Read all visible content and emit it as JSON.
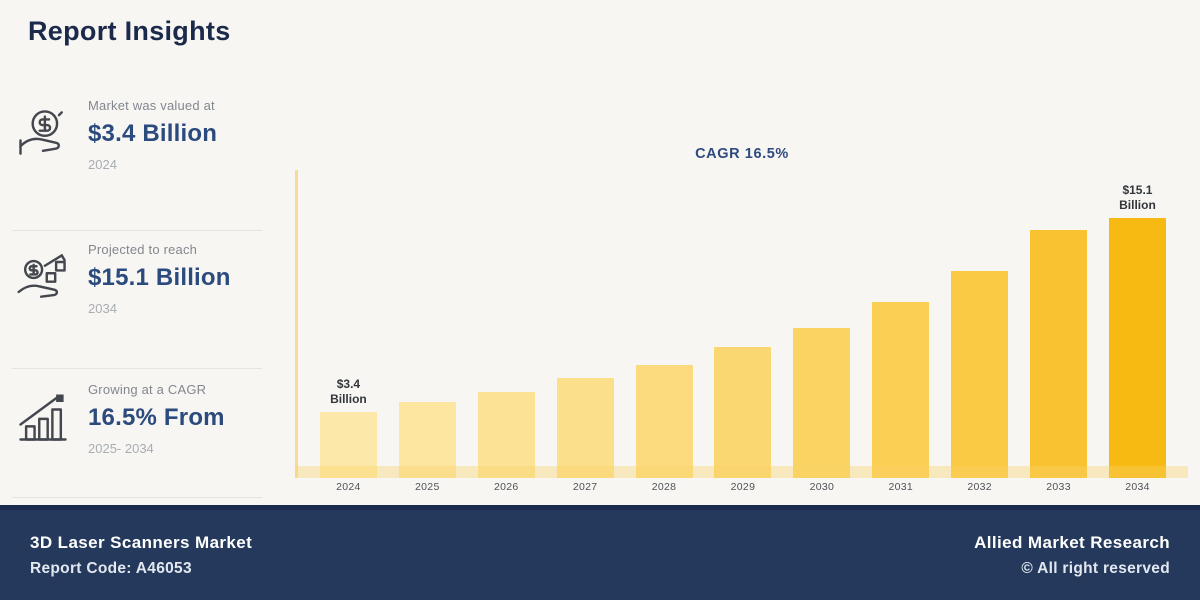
{
  "page": {
    "title": "Report Insights"
  },
  "stats": [
    {
      "icon": "coins-in-hand-icon",
      "label": "Market was valued at",
      "value": "$3.4 Billion",
      "period": "2024"
    },
    {
      "icon": "money-growth-hand-icon",
      "label": "Projected to reach",
      "value": "$15.1 Billion",
      "period": "2034"
    },
    {
      "icon": "growth-bars-arrow-icon",
      "label": "Growing at a CAGR",
      "value": "16.5% From",
      "period": "2025- 2034"
    }
  ],
  "chart_data": {
    "type": "bar",
    "title": "CAGR 16.5%",
    "categories": [
      "2024",
      "2025",
      "2026",
      "2027",
      "2028",
      "2029",
      "2030",
      "2031",
      "2032",
      "2033",
      "2034"
    ],
    "values": [
      3.4,
      3.9,
      4.4,
      5.1,
      5.8,
      6.7,
      7.7,
      9.0,
      10.6,
      12.7,
      15.1
    ],
    "bar_labels": {
      "2024": "$3.4 Billion",
      "2034": "$15.1 Billion"
    },
    "xlabel": "",
    "ylabel": "",
    "ylim": [
      0,
      15.1
    ],
    "grid": false,
    "legend_position": "none",
    "bar_colors": [
      "#FCE9A9",
      "#FCE6A0",
      "#FBE295",
      "#FBDF8A",
      "#FBDB7E",
      "#FBD771",
      "#FBD363",
      "#FBCE54",
      "#FACA45",
      "#F9C231",
      "#F7BA12"
    ],
    "axis_color": "#F8DD90",
    "baseline_band_color": "rgba(249,211,105,0.38)"
  },
  "footer": {
    "left_title": "3D Laser Scanners Market",
    "left_subtitle": "Report Code: A46053",
    "right_title": "Allied Market Research",
    "right_subtitle": "© All right reserved",
    "background": "#24395C"
  },
  "colors": {
    "title_navy": "#1B2A4A",
    "accent_navy": "#2B4A7D",
    "footer_navy": "#24395C",
    "bar_light": "#FCE9A9",
    "bar_gold": "#F7BA12"
  }
}
